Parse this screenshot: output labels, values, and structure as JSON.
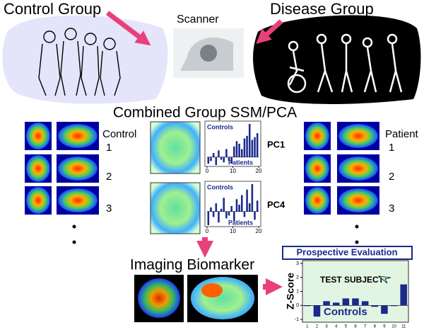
{
  "header": {
    "control_group": "Control Group",
    "scanner": "Scanner",
    "disease_group": "Disease Group"
  },
  "ssm_title": "Combined Group SSM/PCA",
  "control": {
    "label": "Control",
    "rows": [
      "1",
      "2",
      "3"
    ]
  },
  "patient": {
    "label": "Patient",
    "rows": [
      "1",
      "2",
      "3"
    ]
  },
  "pcs": [
    {
      "label": "PC1",
      "top": "Controls",
      "bottom": "Patients",
      "xticks": [
        0,
        10,
        20
      ],
      "values": [
        -0.5,
        -0.3,
        0.3,
        -0.6,
        0.5,
        -0.2,
        -0.4,
        0.6,
        -0.3,
        -0.5,
        0.8,
        1.2,
        1.0,
        0.6,
        1.4,
        1.6,
        2.5,
        1.3,
        1.5,
        1.8
      ]
    },
    {
      "label": "PC4",
      "top": "Controls",
      "bottom": "Patients",
      "xticks": [
        0,
        10,
        20
      ],
      "values": [
        -1.0,
        0.3,
        -0.4,
        0.6,
        -0.8,
        0.2,
        1.0,
        -0.5,
        -0.3,
        0.4,
        -0.7,
        0.9,
        0.5,
        1.2,
        -0.4,
        1.6,
        0.6,
        2.0,
        -0.6,
        0.8
      ]
    }
  ],
  "biomarker": "Imaging Biomarker",
  "evaluation": {
    "title": "Prospective Evaluation",
    "ylabel": "Z-Score",
    "annotation": "TEST SUBJECT",
    "group": "Controls",
    "categories": [
      "1",
      "2",
      "3",
      "4",
      "5",
      "6",
      "7",
      "8",
      "9",
      "10",
      "11"
    ],
    "values": [
      -0.05,
      -0.8,
      0.3,
      0.2,
      0.5,
      0.5,
      0.3,
      -0.1,
      -0.6,
      -0.05,
      1.5
    ],
    "ylim": [
      -1.2,
      3.2
    ],
    "yticks": [
      -1,
      0,
      1,
      2,
      3
    ],
    "color": "#1a2a8c"
  }
}
